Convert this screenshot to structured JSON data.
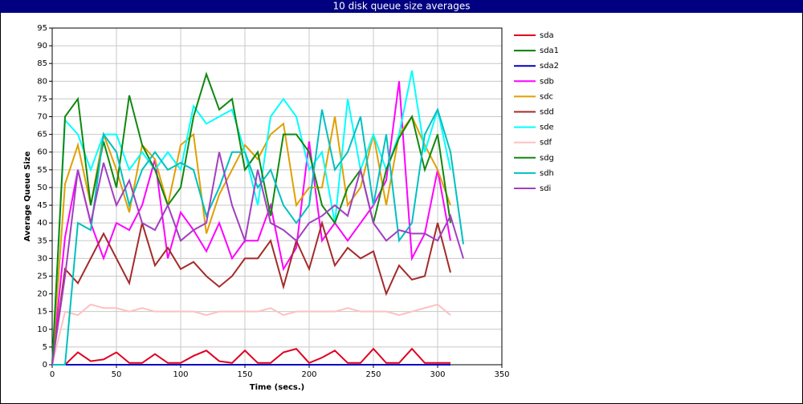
{
  "chart_data": {
    "type": "line",
    "title": "10 disk queue size averages",
    "xlabel": "Time (secs.)",
    "ylabel": "Average Queue Size",
    "x": [
      0,
      10,
      20,
      30,
      40,
      50,
      60,
      70,
      80,
      90,
      100,
      110,
      120,
      130,
      140,
      150,
      160,
      170,
      180,
      190,
      200,
      210,
      220,
      230,
      240,
      250,
      260,
      270,
      280,
      290,
      300,
      310,
      320
    ],
    "xlim": [
      0,
      350
    ],
    "xticks": [
      0,
      50,
      100,
      150,
      200,
      250,
      300,
      350
    ],
    "ylim": [
      0,
      95
    ],
    "yticks": [
      0,
      5,
      10,
      15,
      20,
      25,
      30,
      35,
      40,
      45,
      50,
      55,
      60,
      65,
      70,
      75,
      80,
      85,
      90,
      95
    ],
    "grid": true,
    "legend": "right",
    "series": [
      {
        "name": "sda",
        "color": "#e00020",
        "values": [
          0,
          0,
          3.5,
          1,
          1.5,
          3.5,
          0.5,
          0.5,
          3,
          0.5,
          0.5,
          2.5,
          4,
          1,
          0.5,
          4,
          0.5,
          0.5,
          3.5,
          4.5,
          0.5,
          2,
          4,
          0.5,
          0.5,
          4.5,
          0.5,
          0.5,
          4.5,
          0.5,
          0.5,
          0.5,
          null
        ]
      },
      {
        "name": "sda1",
        "color": "#008000",
        "values": [
          0,
          0,
          0,
          0,
          0,
          0,
          0,
          0,
          0,
          0,
          0,
          0,
          0,
          0,
          0,
          0,
          0,
          0,
          0,
          0,
          0,
          0,
          0,
          0,
          0,
          0,
          0,
          0,
          0,
          0,
          0,
          0,
          null
        ]
      },
      {
        "name": "sda2",
        "color": "#0000c0",
        "values": [
          0,
          0,
          0,
          0,
          0,
          0,
          0,
          0,
          0,
          0,
          0,
          0,
          0,
          0,
          0,
          0,
          0,
          0,
          0,
          0,
          0,
          0,
          0,
          0,
          0,
          0,
          0,
          0,
          0,
          0,
          0,
          0,
          null
        ]
      },
      {
        "name": "sdb",
        "color": "#ff00ff",
        "values": [
          0,
          36,
          55,
          40,
          30,
          40,
          38,
          45,
          58,
          30,
          43,
          38,
          32,
          40,
          30,
          35,
          35,
          45,
          27,
          33,
          63,
          35,
          40,
          35,
          40,
          45,
          52,
          80,
          30,
          37,
          55,
          35,
          null
        ]
      },
      {
        "name": "sdc",
        "color": "#e0a000",
        "values": [
          0,
          51,
          62,
          45,
          65,
          55,
          43,
          62,
          58,
          45,
          62,
          65,
          37,
          48,
          55,
          62,
          58,
          65,
          68,
          45,
          50,
          50,
          70,
          45,
          50,
          65,
          45,
          65,
          70,
          62,
          55,
          45,
          null
        ]
      },
      {
        "name": "sdd",
        "color": "#a52a2a",
        "values": [
          0,
          27,
          23,
          30,
          37,
          30,
          23,
          40,
          28,
          33,
          27,
          29,
          25,
          22,
          25,
          30,
          30,
          35,
          22,
          35,
          27,
          40,
          28,
          33,
          30,
          32,
          20,
          28,
          24,
          25,
          40,
          26,
          null
        ]
      },
      {
        "name": "sde",
        "color": "#00ffff",
        "values": [
          0,
          69,
          65,
          55,
          65,
          65,
          55,
          60,
          55,
          60,
          55,
          73,
          68,
          70,
          72,
          60,
          45,
          70,
          75,
          70,
          55,
          60,
          40,
          75,
          55,
          65,
          55,
          65,
          83,
          60,
          72,
          55,
          null
        ]
      },
      {
        "name": "sdf",
        "color": "#ffc0c0",
        "values": [
          0,
          15,
          14,
          17,
          16,
          16,
          15,
          16,
          15,
          15,
          15,
          15,
          14,
          15,
          15,
          15,
          15,
          16,
          14,
          15,
          15,
          15,
          15,
          16,
          15,
          15,
          15,
          14,
          15,
          16,
          17,
          14,
          null
        ]
      },
      {
        "name": "sdg",
        "color": "#108810",
        "values": [
          0,
          70,
          75,
          45,
          63,
          50,
          76,
          62,
          55,
          45,
          50,
          70,
          82,
          72,
          75,
          55,
          60,
          42,
          65,
          65,
          60,
          45,
          40,
          50,
          55,
          40,
          55,
          64,
          70,
          55,
          65,
          40,
          null
        ]
      },
      {
        "name": "sdh",
        "color": "#00c0c0",
        "values": [
          0,
          0,
          40,
          38,
          65,
          60,
          45,
          55,
          60,
          55,
          57,
          55,
          42,
          50,
          60,
          60,
          50,
          55,
          45,
          40,
          45,
          72,
          55,
          60,
          70,
          45,
          65,
          35,
          40,
          65,
          72,
          60,
          34
        ]
      },
      {
        "name": "sdi",
        "color": "#a040c0",
        "values": [
          0,
          25,
          55,
          40,
          57,
          45,
          52,
          40,
          38,
          45,
          35,
          38,
          40,
          60,
          45,
          35,
          55,
          40,
          38,
          35,
          40,
          42,
          45,
          42,
          55,
          40,
          35,
          38,
          37,
          37,
          35,
          42,
          30
        ]
      }
    ]
  }
}
